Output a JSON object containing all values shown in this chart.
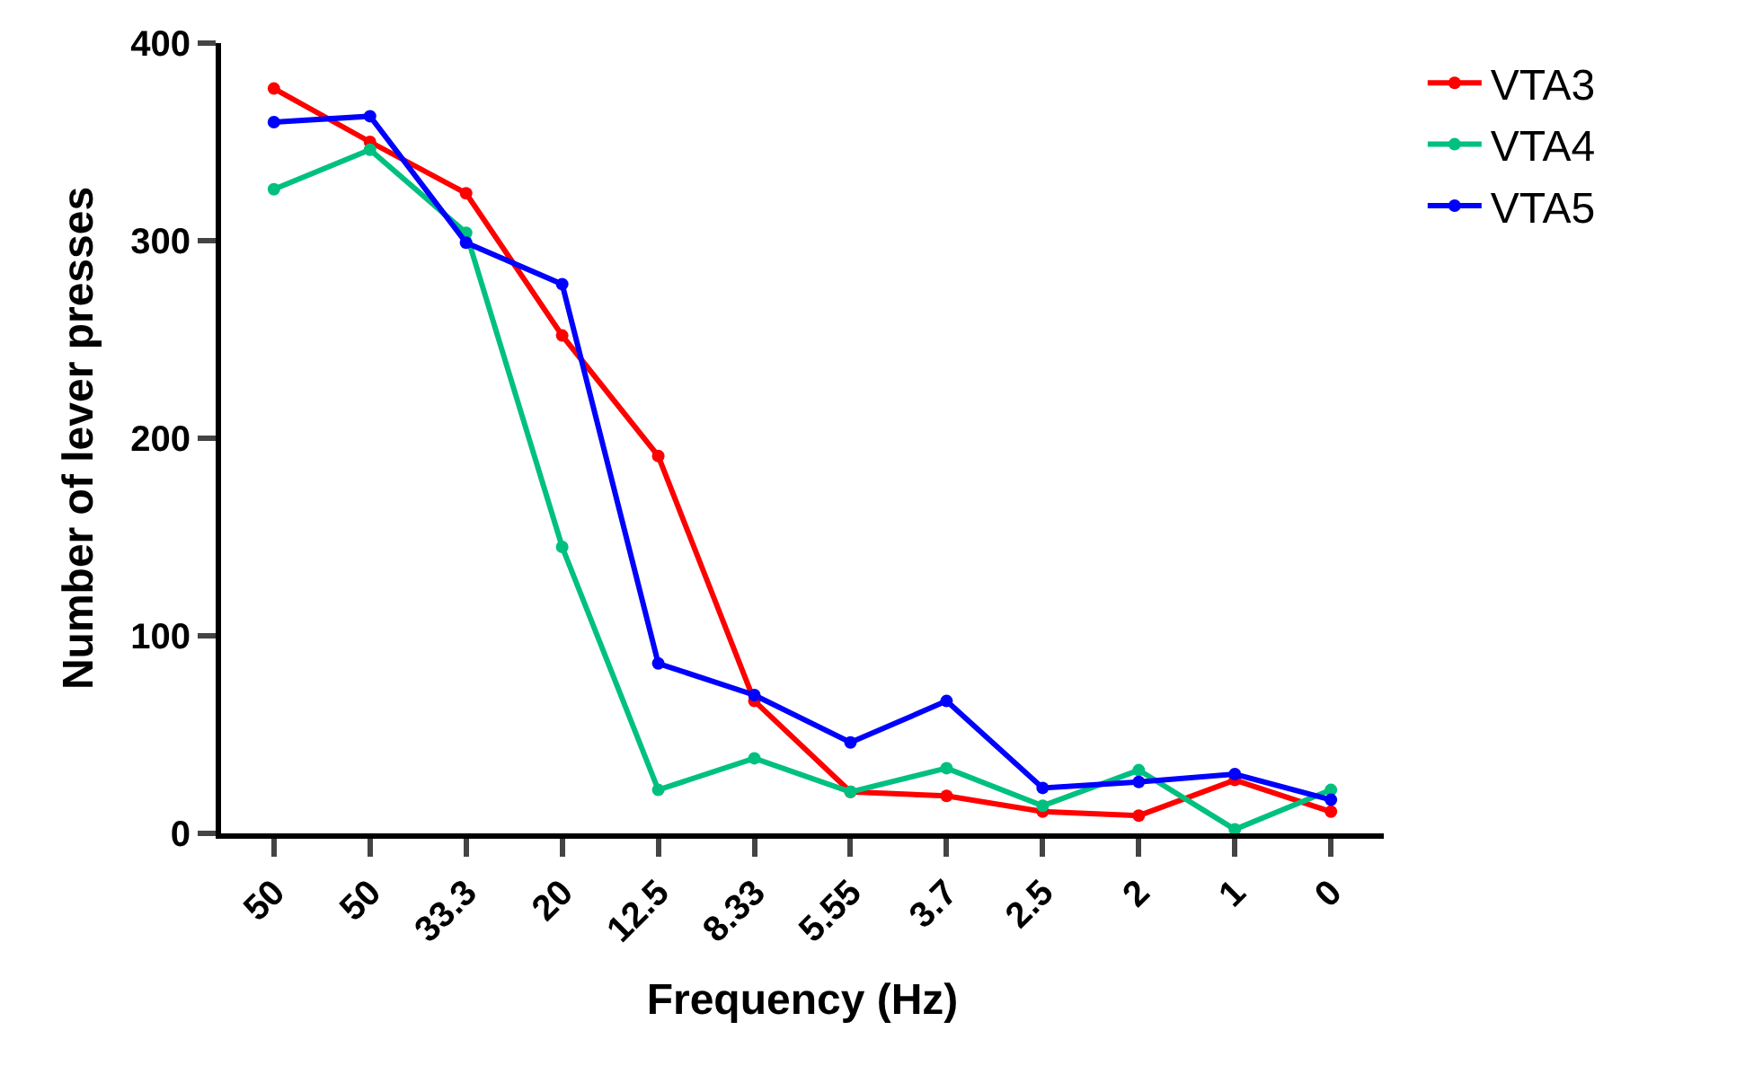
{
  "chart_data": {
    "type": "line",
    "xlabel": "Frequency (Hz)",
    "ylabel": "Number of lever presses",
    "categories": [
      "50",
      "50",
      "33.3",
      "20",
      "12.5",
      "8.33",
      "5.55",
      "3.7",
      "2.5",
      "2",
      "1",
      "0"
    ],
    "series": [
      {
        "name": "VTA3",
        "color": "#ff0000",
        "values": [
          377,
          350,
          324,
          252,
          191,
          67,
          21,
          19,
          11,
          9,
          27,
          11
        ]
      },
      {
        "name": "VTA4",
        "color": "#00c080",
        "values": [
          326,
          346,
          304,
          145,
          22,
          38,
          21,
          33,
          14,
          32,
          2,
          22
        ]
      },
      {
        "name": "VTA5",
        "color": "#0000ff",
        "values": [
          360,
          363,
          299,
          278,
          86,
          70,
          46,
          67,
          23,
          26,
          30,
          17
        ]
      }
    ],
    "ylim": [
      0,
      400
    ],
    "yticks": [
      0,
      100,
      200,
      300,
      400
    ],
    "legend": "top right",
    "marker": "circle",
    "line_style": "solid"
  }
}
